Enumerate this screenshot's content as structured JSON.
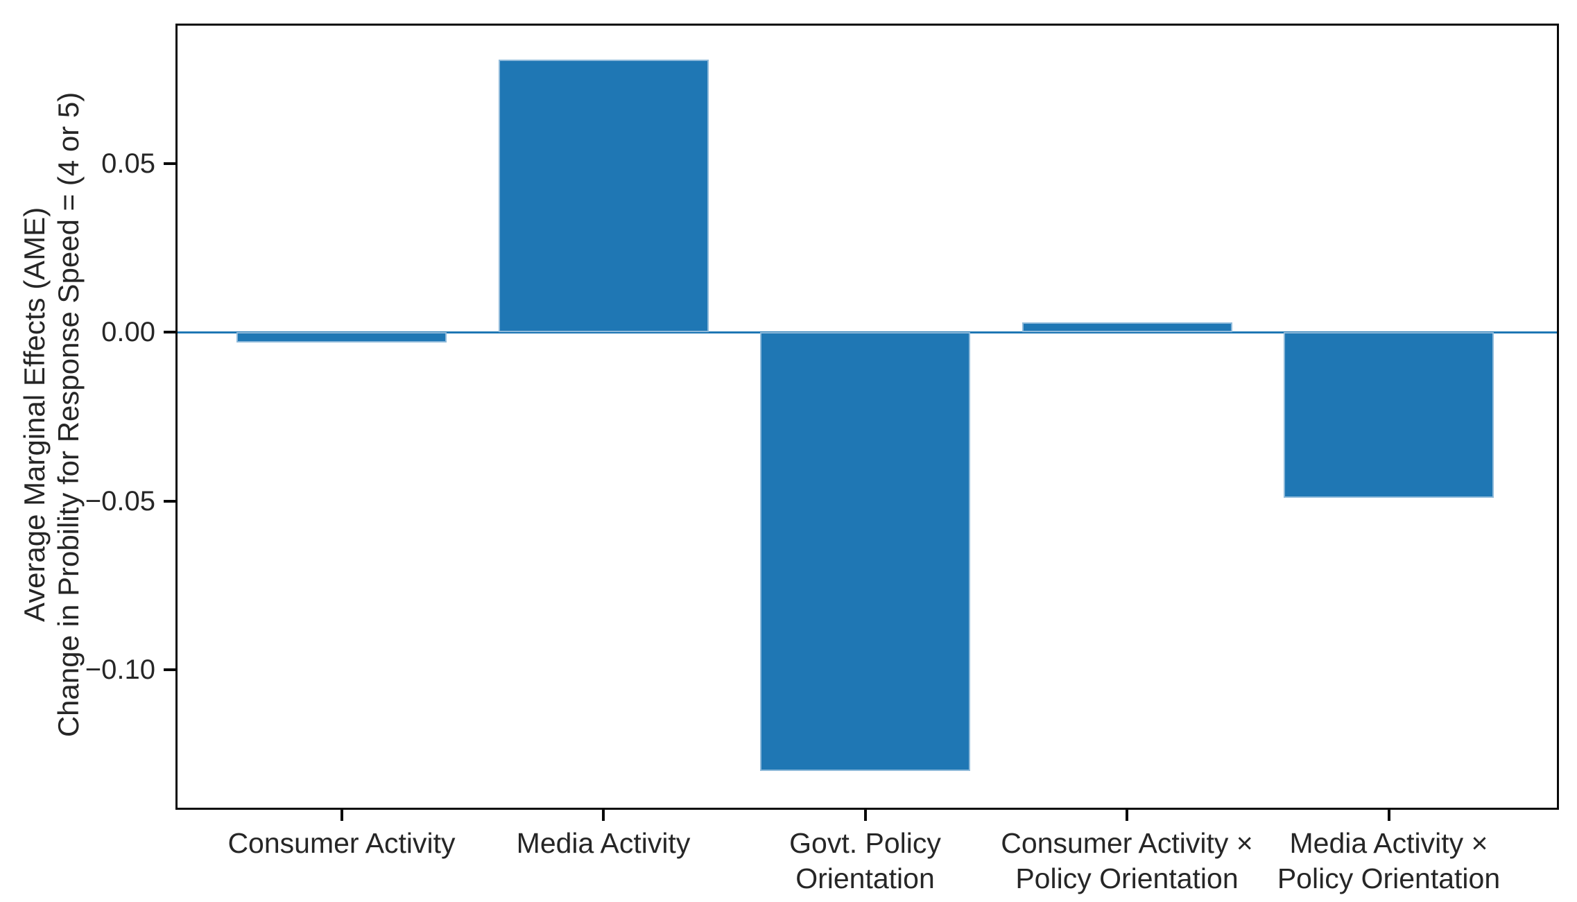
{
  "chart_data": {
    "type": "bar",
    "categories": [
      "Consumer Activity",
      "Media Activity",
      "Govt. Policy\nOrientation",
      "Consumer Activity ×\nPolicy Orientation",
      "Media Activity ×\nPolicy Orientation"
    ],
    "values": [
      -0.003,
      0.081,
      -0.13,
      0.003,
      -0.049
    ],
    "title": "",
    "xlabel": "",
    "ylabel_lines": [
      "Average Marginal Effects (AME)",
      "Change in Probility for Response Speed = (4 or 5)"
    ],
    "yticks": [
      0.05,
      0.0,
      -0.05,
      -0.1
    ],
    "ytick_labels": [
      "0.05",
      "0.00",
      "−0.05",
      "−0.10"
    ],
    "ylim": [
      -0.141,
      0.091
    ],
    "grid": false,
    "legend": null,
    "zero_line": true,
    "bar_color": "#1f77b4",
    "zero_line_color": "#1f77b4",
    "axis_color": "#0a0a0a",
    "text_color": "#262626"
  }
}
